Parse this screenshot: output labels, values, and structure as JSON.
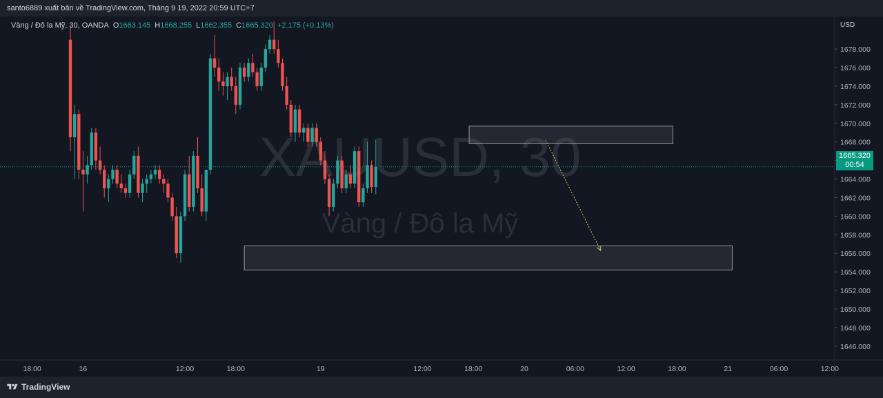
{
  "header": {
    "published_by": "santo6889 xuất bản về TradingView.com, Tháng 9 19, 2022 20:59 UTC+7"
  },
  "legend": {
    "symbol": "Vàng / Đô la Mỹ, 30, OANDA",
    "open_label": "O",
    "open": "1663.145",
    "high_label": "H",
    "high": "1668.255",
    "low_label": "L",
    "low": "1662.355",
    "close_label": "C",
    "close": "1665.320",
    "change": "+2.175 (+0.13%)"
  },
  "watermark": {
    "ticker": "XAUUSD, 30",
    "name": "Vàng / Đô la Mỹ"
  },
  "price_axis": {
    "currency": "USD",
    "current_price": "1665.320",
    "countdown": "00:54"
  },
  "footer": {
    "brand": "TradingView"
  },
  "colors": {
    "background": "#131722",
    "up": "#26a69a",
    "down": "#ef5350",
    "price_tag": "#089981",
    "arrow": "#c9c35a"
  },
  "chart_data": {
    "type": "candlestick",
    "symbol": "XAUUSD",
    "timeframe": "30",
    "ylim": [
      1644.5,
      1681.5
    ],
    "y_ticks": [
      "1646.000",
      "1648.000",
      "1650.000",
      "1652.000",
      "1654.000",
      "1656.000",
      "1658.000",
      "1660.000",
      "1662.000",
      "1664.000",
      "1666.000",
      "1668.000",
      "1670.000",
      "1672.000",
      "1674.000",
      "1676.000",
      "1678.000"
    ],
    "x_ticks": [
      {
        "label": "18:00",
        "index": -9
      },
      {
        "label": "16",
        "index": 3
      },
      {
        "label": "12:00",
        "index": 27
      },
      {
        "label": "18:00",
        "index": 39
      },
      {
        "label": "19",
        "index": 59
      },
      {
        "label": "12:00",
        "index": 83
      },
      {
        "label": "18:00",
        "index": 95
      },
      {
        "label": "20",
        "index": 107
      },
      {
        "label": "06:00",
        "index": 119
      },
      {
        "label": "12:00",
        "index": 131
      },
      {
        "label": "18:00",
        "index": 143
      },
      {
        "label": "21",
        "index": 155
      },
      {
        "label": "06:00",
        "index": 167
      },
      {
        "label": "12:00",
        "index": 179
      }
    ],
    "candles": [
      [
        1679.0,
        1680.5,
        1667.0,
        1668.5
      ],
      [
        1668.5,
        1672.0,
        1664.0,
        1671.0
      ],
      [
        1671.0,
        1671.5,
        1664.0,
        1665.0
      ],
      [
        1665.0,
        1667.0,
        1660.5,
        1664.5
      ],
      [
        1664.5,
        1666.5,
        1663.5,
        1665.5
      ],
      [
        1665.5,
        1669.5,
        1665.0,
        1669.0
      ],
      [
        1669.0,
        1669.5,
        1665.0,
        1666.0
      ],
      [
        1666.0,
        1667.5,
        1664.5,
        1665.0
      ],
      [
        1665.0,
        1665.5,
        1662.0,
        1663.0
      ],
      [
        1663.0,
        1664.5,
        1661.5,
        1664.0
      ],
      [
        1664.0,
        1665.5,
        1663.5,
        1665.0
      ],
      [
        1665.0,
        1665.5,
        1663.0,
        1663.5
      ],
      [
        1663.5,
        1664.5,
        1662.5,
        1663.0
      ],
      [
        1663.0,
        1663.5,
        1662.0,
        1662.5
      ],
      [
        1662.5,
        1665.0,
        1662.0,
        1664.5
      ],
      [
        1664.5,
        1667.0,
        1664.0,
        1666.5
      ],
      [
        1666.5,
        1667.5,
        1662.0,
        1662.5
      ],
      [
        1662.5,
        1664.0,
        1661.5,
        1663.5
      ],
      [
        1663.5,
        1664.5,
        1662.5,
        1664.0
      ],
      [
        1664.0,
        1665.0,
        1663.5,
        1664.5
      ],
      [
        1664.5,
        1665.5,
        1664.0,
        1665.0
      ],
      [
        1665.0,
        1665.5,
        1663.5,
        1664.0
      ],
      [
        1664.0,
        1664.5,
        1662.5,
        1663.5
      ],
      [
        1663.5,
        1664.0,
        1661.5,
        1662.0
      ],
      [
        1662.0,
        1662.5,
        1659.5,
        1660.0
      ],
      [
        1660.0,
        1661.0,
        1655.5,
        1656.0
      ],
      [
        1656.0,
        1660.5,
        1655.0,
        1660.0
      ],
      [
        1660.0,
        1665.0,
        1659.5,
        1664.5
      ],
      [
        1664.5,
        1666.5,
        1660.5,
        1661.0
      ],
      [
        1661.0,
        1667.0,
        1660.5,
        1666.5
      ],
      [
        1666.5,
        1668.5,
        1662.5,
        1663.0
      ],
      [
        1663.0,
        1664.5,
        1660.0,
        1660.5
      ],
      [
        1660.5,
        1665.0,
        1659.5,
        1665.0
      ],
      [
        1665.0,
        1677.5,
        1664.5,
        1677.0
      ],
      [
        1677.0,
        1679.5,
        1675.0,
        1676.0
      ],
      [
        1676.0,
        1677.0,
        1673.5,
        1674.5
      ],
      [
        1674.5,
        1675.5,
        1673.0,
        1674.0
      ],
      [
        1674.0,
        1675.5,
        1672.5,
        1675.0
      ],
      [
        1675.0,
        1676.0,
        1673.5,
        1674.0
      ],
      [
        1674.0,
        1675.0,
        1671.0,
        1672.0
      ],
      [
        1672.0,
        1676.5,
        1671.5,
        1676.0
      ],
      [
        1676.0,
        1676.5,
        1674.5,
        1675.0
      ],
      [
        1675.0,
        1677.0,
        1674.5,
        1676.5
      ],
      [
        1676.5,
        1677.5,
        1675.0,
        1675.5
      ],
      [
        1675.5,
        1676.0,
        1673.5,
        1674.0
      ],
      [
        1674.0,
        1676.5,
        1673.5,
        1676.0
      ],
      [
        1676.0,
        1678.5,
        1675.5,
        1678.0
      ],
      [
        1678.0,
        1679.5,
        1677.5,
        1679.0
      ],
      [
        1679.0,
        1681.0,
        1677.5,
        1678.0
      ],
      [
        1678.0,
        1679.0,
        1676.0,
        1676.5
      ],
      [
        1676.5,
        1677.0,
        1673.5,
        1674.0
      ],
      [
        1674.0,
        1675.0,
        1671.5,
        1672.0
      ],
      [
        1672.0,
        1672.5,
        1668.5,
        1669.0
      ],
      [
        1669.0,
        1672.0,
        1668.0,
        1671.5
      ],
      [
        1671.5,
        1672.0,
        1668.5,
        1669.0
      ],
      [
        1669.0,
        1670.0,
        1668.0,
        1669.5
      ],
      [
        1669.5,
        1670.0,
        1667.5,
        1668.0
      ],
      [
        1668.0,
        1670.0,
        1667.5,
        1669.5
      ],
      [
        1669.5,
        1670.0,
        1667.5,
        1668.0
      ],
      [
        1668.0,
        1668.5,
        1665.5,
        1666.0
      ],
      [
        1666.0,
        1667.0,
        1663.5,
        1664.0
      ],
      [
        1664.0,
        1664.5,
        1660.0,
        1661.0
      ],
      [
        1661.0,
        1664.0,
        1660.5,
        1663.5
      ],
      [
        1663.5,
        1666.5,
        1663.0,
        1666.0
      ],
      [
        1666.0,
        1666.5,
        1662.5,
        1663.0
      ],
      [
        1663.0,
        1665.0,
        1662.5,
        1664.5
      ],
      [
        1664.5,
        1665.5,
        1663.0,
        1663.5
      ],
      [
        1663.5,
        1667.5,
        1663.0,
        1667.0
      ],
      [
        1667.0,
        1667.5,
        1661.0,
        1661.5
      ],
      [
        1661.5,
        1663.5,
        1661.0,
        1663.0
      ],
      [
        1663.0,
        1668.0,
        1662.5,
        1665.5
      ],
      [
        1665.5,
        1666.0,
        1662.5,
        1663.145
      ],
      [
        1663.145,
        1668.255,
        1662.355,
        1665.32
      ]
    ],
    "annotations": [
      {
        "type": "rectangle",
        "x0": 94,
        "x1": 142,
        "y0": 1667.8,
        "y1": 1669.7
      },
      {
        "type": "rectangle",
        "x0": 41,
        "x1": 156,
        "y0": 1654.2,
        "y1": 1656.8
      },
      {
        "type": "arrow",
        "x0": 112,
        "y0": 1668.2,
        "x1": 125,
        "y1": 1656.3
      }
    ],
    "current_price": 1665.32,
    "grid": false,
    "legend": "top-left"
  }
}
